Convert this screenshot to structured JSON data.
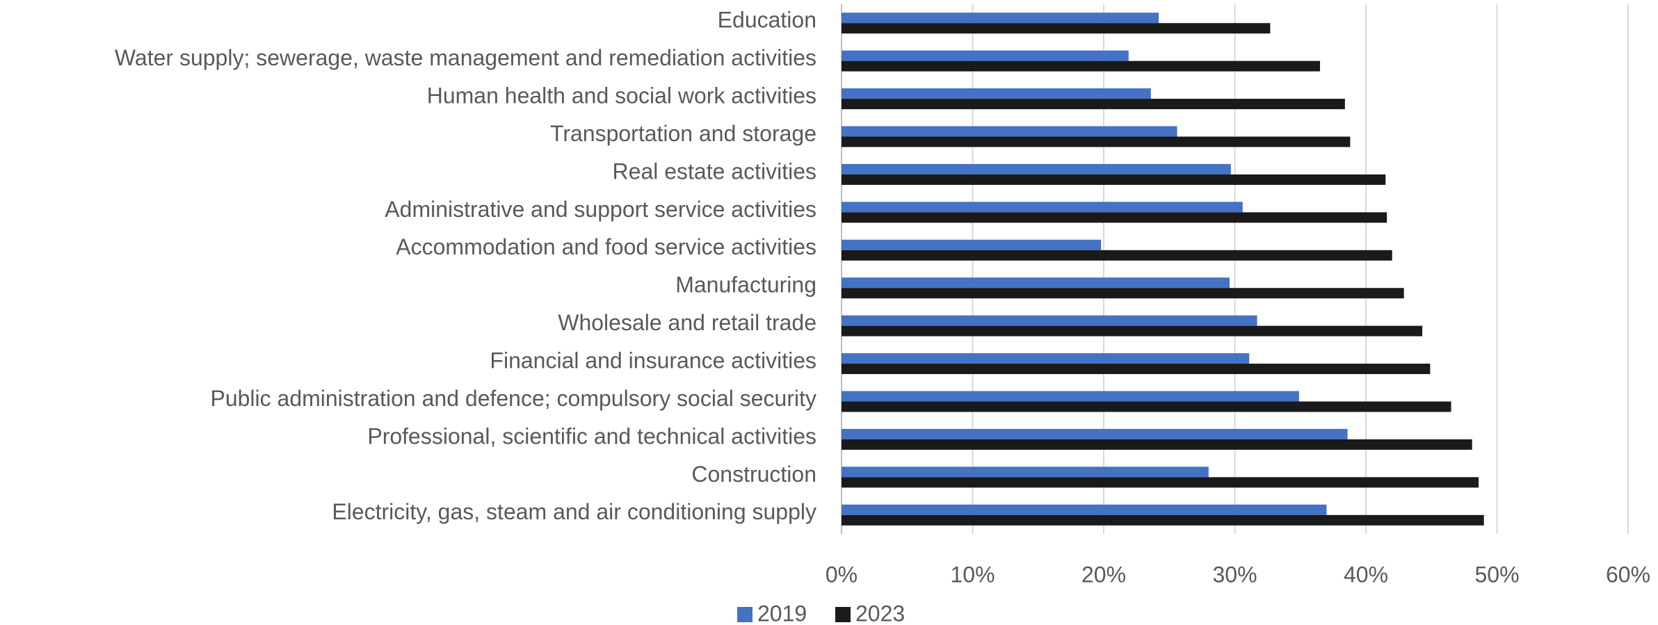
{
  "chart_data": {
    "type": "bar",
    "orientation": "horizontal",
    "categories": [
      "Education",
      "Water supply; sewerage, waste management and remediation activities",
      "Human health and social work activities",
      "Transportation and storage",
      "Real estate activities",
      "Administrative and support service activities",
      "Accommodation and food service activities",
      "Manufacturing",
      "Wholesale and retail trade",
      "Financial and insurance activities",
      "Public administration and defence; compulsory social security",
      "Professional, scientific and technical activities",
      "Construction",
      "Electricity, gas, steam and air conditioning supply"
    ],
    "series": [
      {
        "name": "2019",
        "color": "#4472c4",
        "values": [
          24.2,
          21.9,
          23.6,
          25.6,
          29.7,
          30.6,
          19.8,
          29.6,
          31.7,
          31.1,
          34.9,
          38.6,
          28.0,
          37.0
        ]
      },
      {
        "name": "2023",
        "color": "#1a1a1a",
        "values": [
          32.7,
          36.5,
          38.4,
          38.8,
          41.5,
          41.6,
          42.0,
          42.9,
          44.3,
          44.9,
          46.5,
          48.1,
          48.6,
          49.0
        ]
      }
    ],
    "xlim": [
      0,
      60
    ],
    "xticks": [
      {
        "value": 0,
        "label": "0%"
      },
      {
        "value": 10,
        "label": "10%"
      },
      {
        "value": 20,
        "label": "20%"
      },
      {
        "value": 30,
        "label": "30%"
      },
      {
        "value": 40,
        "label": "40%"
      },
      {
        "value": 50,
        "label": "50%"
      },
      {
        "value": 60,
        "label": "60%"
      }
    ],
    "grid": true,
    "legend": "bottom"
  }
}
